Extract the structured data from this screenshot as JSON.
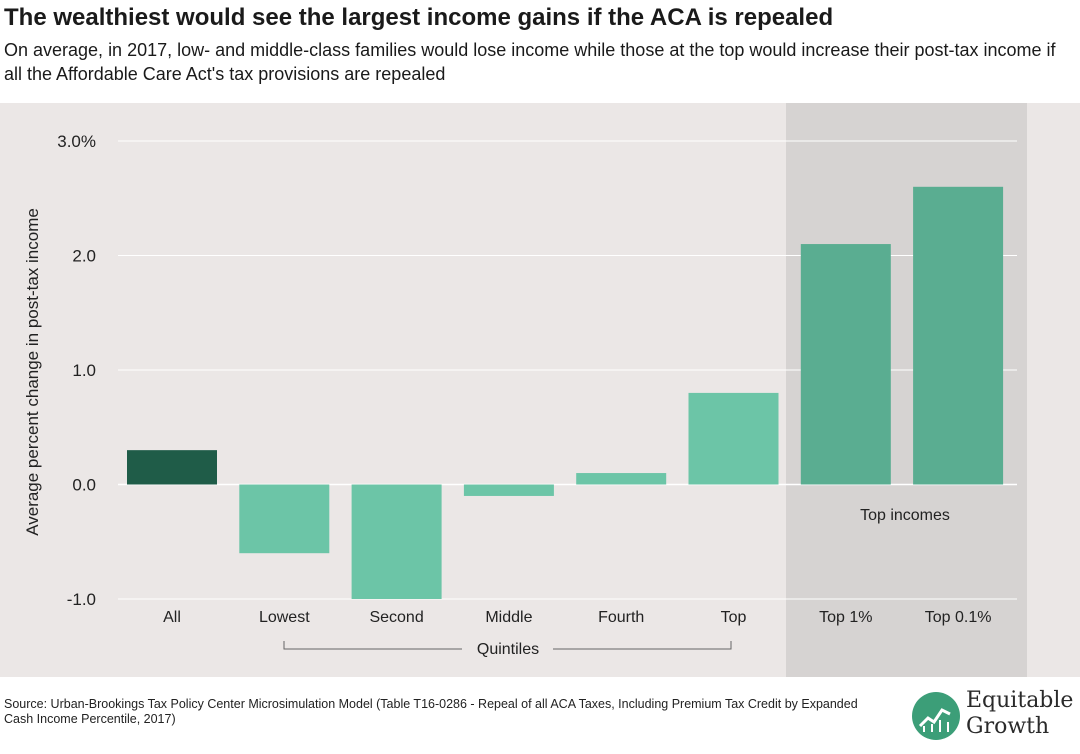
{
  "title": "The wealthiest would see the largest income gains if the ACA is repealed",
  "subtitle": "On average, in 2017, low- and middle-class families would lose income while those at the top would increase their post-tax income if all the Affordable Care Act's tax provisions are repealed",
  "source": "Source: Urban-Brookings Tax Policy Center Microsimulation Model (Table T16-0286 - Repeal of all ACA Taxes, Including Premium Tax Credit by Expanded Cash Income Percentile, 2017)",
  "logo": {
    "line1": "Equitable",
    "line2": "Growth"
  },
  "chart_data": {
    "type": "bar",
    "title": "",
    "xlabel": "",
    "ylabel": "Average percent change in post-tax income",
    "categories": [
      "All",
      "Lowest",
      "Second",
      "Middle",
      "Fourth",
      "Top",
      "Top 1%",
      "Top 0.1%"
    ],
    "values": [
      0.3,
      -0.6,
      -1.0,
      -0.1,
      0.1,
      0.8,
      2.1,
      2.6
    ],
    "ylim": [
      -1.0,
      3.0
    ],
    "yticks": [
      3.0,
      2.0,
      1.0,
      0.0,
      -1.0
    ],
    "ytick_labels": [
      "3.0%",
      "2.0",
      "1.0",
      "0.0",
      "-1.0"
    ],
    "grid": true,
    "bar_colors": [
      "#1f5c48",
      "#6cc5a7",
      "#6cc5a7",
      "#6cc5a7",
      "#6cc5a7",
      "#6cc5a7",
      "#5aad91",
      "#5aad91"
    ],
    "group_labels": {
      "quintiles": "Quintiles",
      "top_incomes": "Top incomes"
    },
    "shaded_region_color": "#d6d3d2"
  }
}
